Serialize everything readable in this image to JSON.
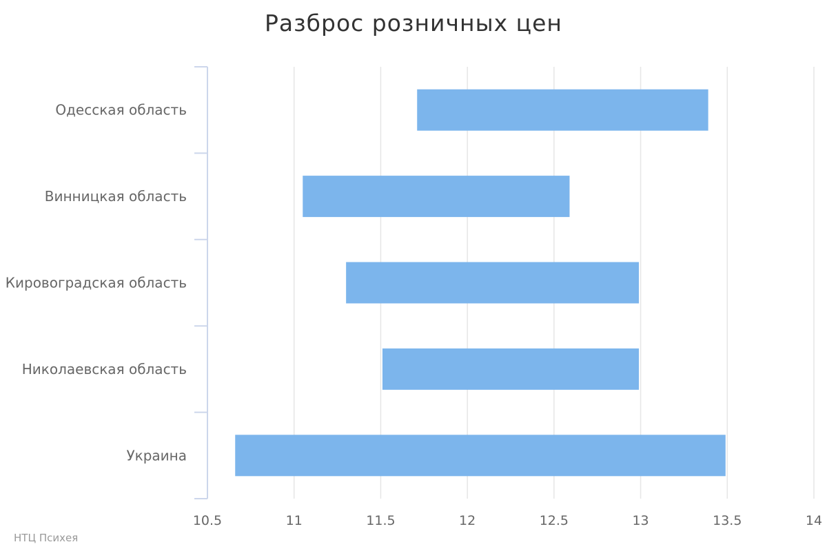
{
  "chart_data": {
    "type": "bar",
    "orientation": "horizontal",
    "subtype": "floating-range",
    "title": "Разброс розничных цен",
    "categories": [
      "Одесская область",
      "Винницкая область",
      "Кировоградская область",
      "Николаевская область",
      "Украина"
    ],
    "series": [
      {
        "ranges": [
          [
            11.71,
            13.39
          ],
          [
            11.05,
            12.59
          ],
          [
            11.3,
            12.99
          ],
          [
            11.51,
            12.99
          ],
          [
            10.66,
            13.49
          ]
        ]
      }
    ],
    "xlim": [
      10.5,
      14
    ],
    "x_ticks": [
      "10.5",
      "11",
      "11.5",
      "12",
      "12.5",
      "13",
      "13.5",
      "14"
    ],
    "xlabel": "",
    "ylabel": "",
    "grid": true,
    "legend": "none",
    "colors": {
      "bar": "#7cb5ec",
      "grid": "#e6e6e6",
      "axis": "#ccd6eb",
      "label": "#666666",
      "tick_label": "#666666"
    }
  },
  "credits": "НТЦ Психея"
}
